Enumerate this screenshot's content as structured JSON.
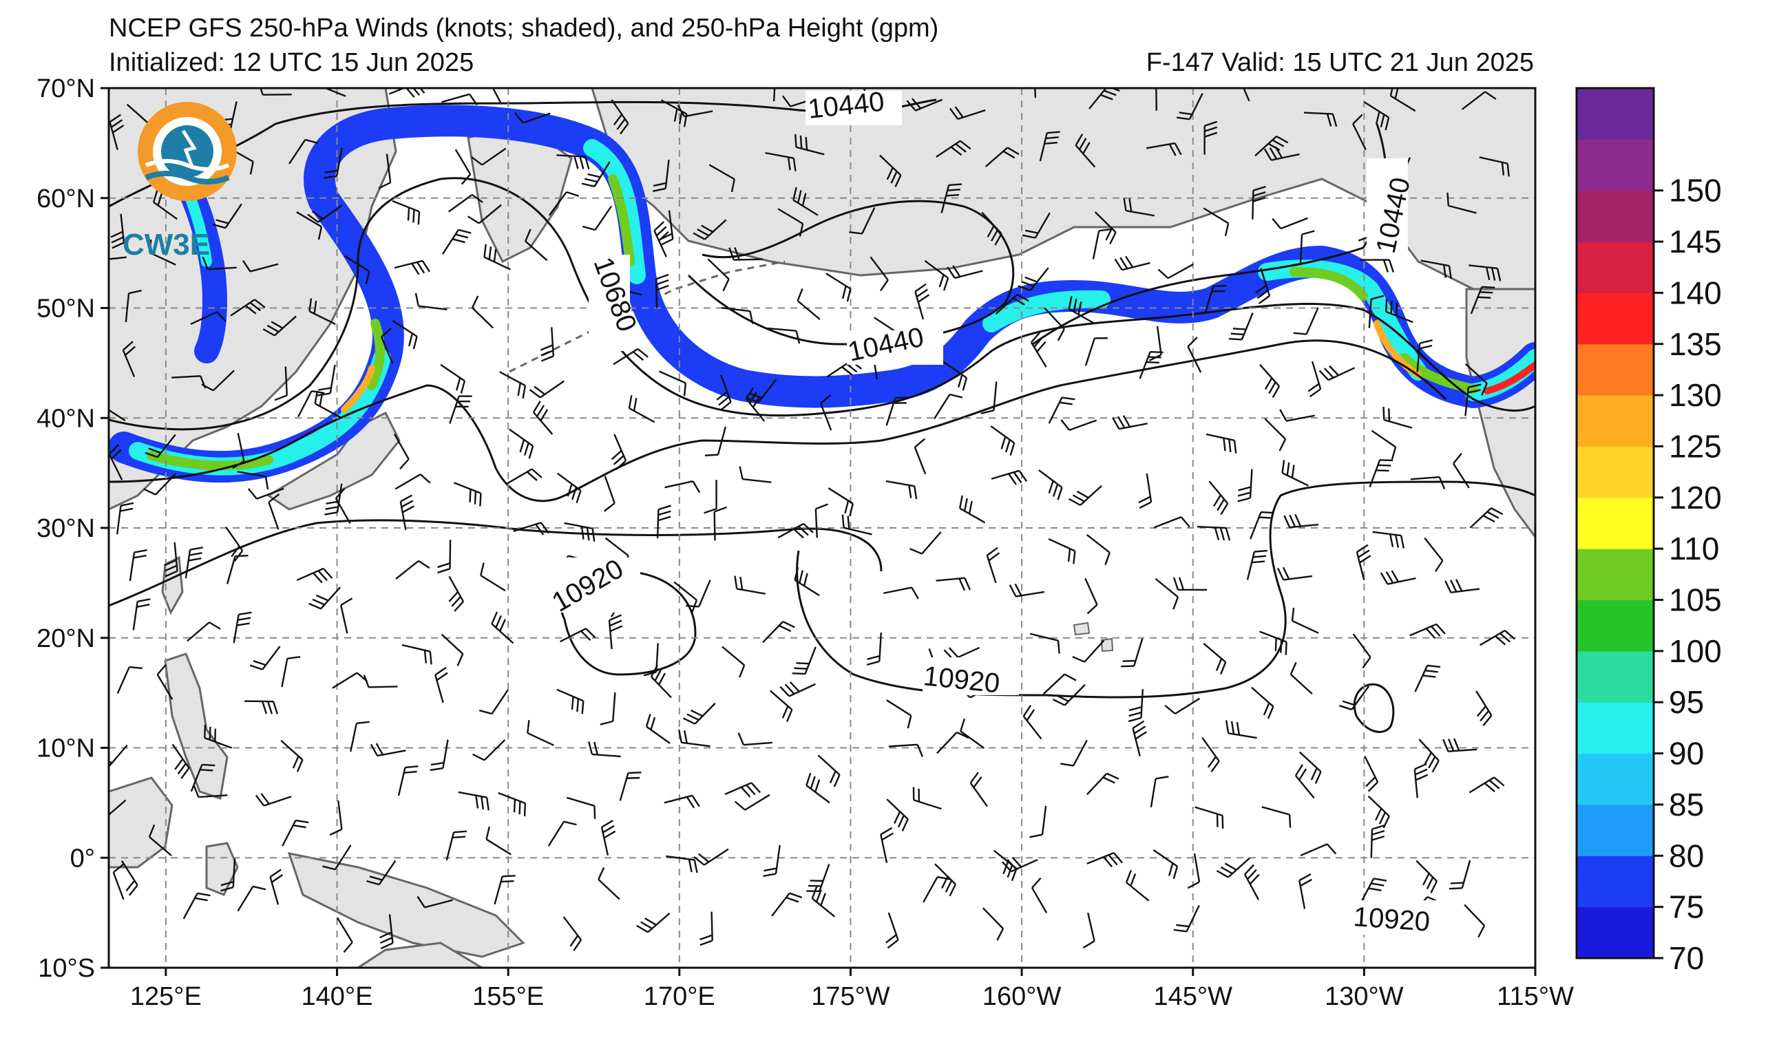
{
  "title": {
    "line1": "NCEP GFS 250-hPa Winds (knots; shaded), and 250-hPa Height (gpm)",
    "initialized": "Initialized: 12 UTC 15 Jun 2025",
    "valid": "F-147  Valid: 15 UTC 21 Jun 2025"
  },
  "logo": {
    "text": "CW3E"
  },
  "axes": {
    "lat_labels": [
      "70°N",
      "60°N",
      "50°N",
      "40°N",
      "30°N",
      "20°N",
      "10°N",
      "0°",
      "10°S"
    ],
    "lon_labels": [
      "125°E",
      "140°E",
      "155°E",
      "170°E",
      "175°W",
      "160°W",
      "145°W",
      "130°W",
      "115°W"
    ],
    "lat_range": [
      -10,
      70
    ],
    "lon_range_deg_east": [
      120,
      245
    ]
  },
  "height_contours": {
    "unit": "gpm",
    "labels": [
      {
        "text": "10440"
      },
      {
        "text": "10440"
      },
      {
        "text": "10440"
      },
      {
        "text": "10680"
      },
      {
        "text": "10920"
      },
      {
        "text": "10920"
      },
      {
        "text": "10920"
      }
    ]
  },
  "colorbar": {
    "unit": "knots",
    "levels": [
      "70",
      "75",
      "80",
      "85",
      "90",
      "95",
      "100",
      "105",
      "110",
      "120",
      "125",
      "130",
      "135",
      "140",
      "145",
      "150"
    ],
    "colors": [
      "#1a1adf",
      "#1c3cf5",
      "#1f9cf7",
      "#23c9f5",
      "#27f0ea",
      "#29dca0",
      "#25c22a",
      "#70cc22",
      "#ffff22",
      "#ffd32a",
      "#ffad22",
      "#ff7a22",
      "#ff2222",
      "#d82040",
      "#a62266",
      "#8e2a8e",
      "#6a2a9a"
    ]
  },
  "map": {
    "land_color": "#e3e3e3",
    "coast_color": "#666666",
    "grid_color": "#888888"
  }
}
